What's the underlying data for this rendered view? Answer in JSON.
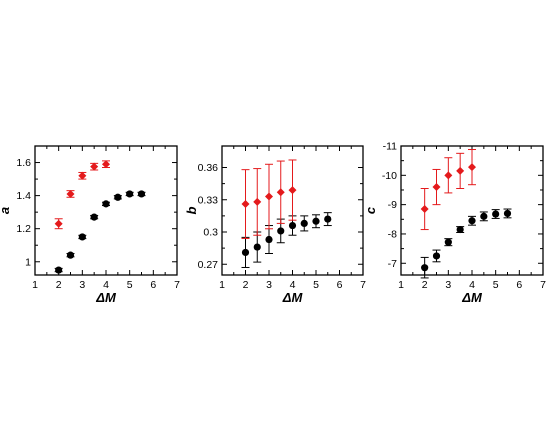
{
  "chart_data": [
    {
      "type": "scatter",
      "title": "",
      "xlabel": "ΔM",
      "ylabel": "a",
      "xlim": [
        1,
        7
      ],
      "ylim": [
        0.92,
        1.7
      ],
      "y_inverted": false,
      "xticks": [
        1,
        2,
        3,
        4,
        5,
        6,
        7
      ],
      "yticks": [
        1,
        1.2,
        1.4,
        1.6
      ],
      "grid": false,
      "series": [
        {
          "color": "#000000",
          "marker": "circle",
          "points": [
            {
              "x": 2.0,
              "y": 0.95,
              "err": 0.01
            },
            {
              "x": 2.5,
              "y": 1.04,
              "err": 0.01
            },
            {
              "x": 3.0,
              "y": 1.15,
              "err": 0.01
            },
            {
              "x": 3.5,
              "y": 1.27,
              "err": 0.01
            },
            {
              "x": 4.0,
              "y": 1.35,
              "err": 0.01
            },
            {
              "x": 4.5,
              "y": 1.39,
              "err": 0.01
            },
            {
              "x": 5.0,
              "y": 1.41,
              "err": 0.01
            },
            {
              "x": 5.5,
              "y": 1.41,
              "err": 0.01
            }
          ]
        },
        {
          "color": "#e41a1c",
          "marker": "diamond",
          "points": [
            {
              "x": 2.0,
              "y": 1.23,
              "err": 0.03
            },
            {
              "x": 2.5,
              "y": 1.41,
              "err": 0.02
            },
            {
              "x": 3.0,
              "y": 1.52,
              "err": 0.02
            },
            {
              "x": 3.5,
              "y": 1.575,
              "err": 0.02
            },
            {
              "x": 4.0,
              "y": 1.59,
              "err": 0.02
            }
          ]
        }
      ]
    },
    {
      "type": "scatter",
      "title": "",
      "xlabel": "ΔM",
      "ylabel": "b",
      "xlim": [
        1,
        7
      ],
      "ylim": [
        0.26,
        0.38
      ],
      "y_inverted": false,
      "xticks": [
        1,
        2,
        3,
        4,
        5,
        6,
        7
      ],
      "yticks": [
        0.27,
        0.3,
        0.33,
        0.36
      ],
      "grid": false,
      "series": [
        {
          "color": "#000000",
          "marker": "circle",
          "points": [
            {
              "x": 2.0,
              "y": 0.281,
              "err": 0.014
            },
            {
              "x": 2.5,
              "y": 0.286,
              "err": 0.014
            },
            {
              "x": 3.0,
              "y": 0.293,
              "err": 0.013
            },
            {
              "x": 3.5,
              "y": 0.301,
              "err": 0.011
            },
            {
              "x": 4.0,
              "y": 0.306,
              "err": 0.009
            },
            {
              "x": 4.5,
              "y": 0.308,
              "err": 0.007
            },
            {
              "x": 5.0,
              "y": 0.31,
              "err": 0.006
            },
            {
              "x": 5.5,
              "y": 0.312,
              "err": 0.006
            }
          ]
        },
        {
          "color": "#e41a1c",
          "marker": "diamond",
          "points": [
            {
              "x": 2.0,
              "y": 0.326,
              "err": 0.032
            },
            {
              "x": 2.5,
              "y": 0.328,
              "err": 0.031
            },
            {
              "x": 3.0,
              "y": 0.333,
              "err": 0.03
            },
            {
              "x": 3.5,
              "y": 0.337,
              "err": 0.029
            },
            {
              "x": 4.0,
              "y": 0.339,
              "err": 0.028
            }
          ]
        }
      ]
    },
    {
      "type": "scatter",
      "title": "",
      "xlabel": "ΔM",
      "ylabel": "c",
      "xlim": [
        1,
        7
      ],
      "ylim": [
        -6.6,
        -11.0
      ],
      "y_inverted": true,
      "xticks": [
        1,
        2,
        3,
        4,
        5,
        6,
        7
      ],
      "yticks": [
        -7,
        -8,
        -9,
        -10,
        -11
      ],
      "grid": false,
      "series": [
        {
          "color": "#000000",
          "marker": "circle",
          "points": [
            {
              "x": 2.0,
              "y": -6.85,
              "err": 0.35
            },
            {
              "x": 2.5,
              "y": -7.25,
              "err": 0.2
            },
            {
              "x": 3.0,
              "y": -7.72,
              "err": 0.12
            },
            {
              "x": 3.5,
              "y": -8.15,
              "err": 0.1
            },
            {
              "x": 4.0,
              "y": -8.45,
              "err": 0.15
            },
            {
              "x": 4.5,
              "y": -8.6,
              "err": 0.15
            },
            {
              "x": 5.0,
              "y": -8.68,
              "err": 0.15
            },
            {
              "x": 5.5,
              "y": -8.7,
              "err": 0.15
            }
          ]
        },
        {
          "color": "#e41a1c",
          "marker": "diamond",
          "points": [
            {
              "x": 2.0,
              "y": -8.85,
              "err": 0.7
            },
            {
              "x": 2.5,
              "y": -9.6,
              "err": 0.6
            },
            {
              "x": 3.0,
              "y": -10.0,
              "err": 0.6
            },
            {
              "x": 3.5,
              "y": -10.15,
              "err": 0.6
            },
            {
              "x": 4.0,
              "y": -10.28,
              "err": 0.6
            }
          ]
        }
      ]
    }
  ]
}
